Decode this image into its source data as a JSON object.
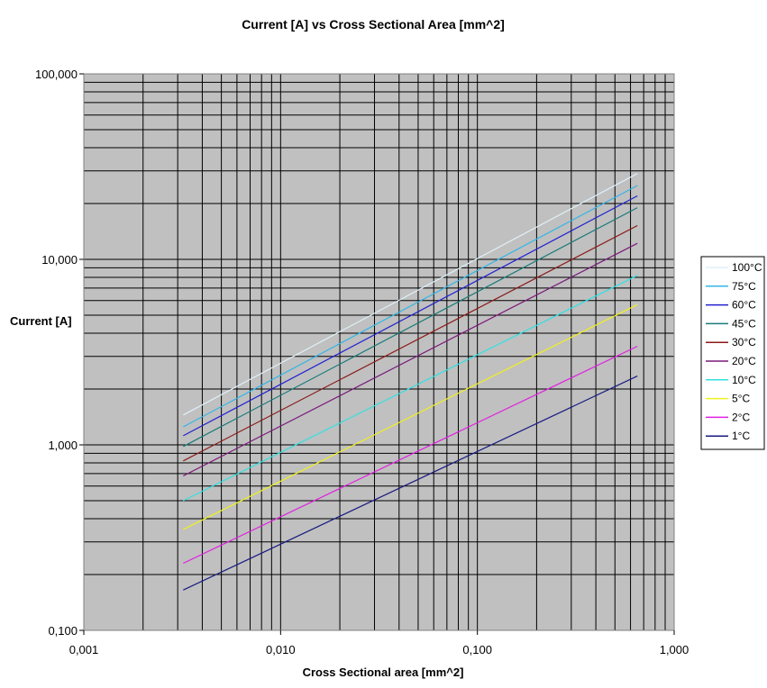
{
  "chart_data": {
    "type": "line",
    "title": "Current [A] vs Cross Sectional  Area [mm^2]",
    "xlabel": "Cross Sectional area [mm^2]",
    "ylabel": "Current [A]",
    "x_scale": "log",
    "y_scale": "log",
    "xlim": [
      0.001,
      1
    ],
    "ylim": [
      0.1,
      100
    ],
    "x_ticks": [
      0.001,
      0.01,
      0.1,
      1
    ],
    "x_tick_labels": [
      "0,001",
      "0,010",
      "0,100",
      "1,000"
    ],
    "y_ticks": [
      0.1,
      1,
      10,
      100
    ],
    "y_tick_labels": [
      "0,100",
      "1,000",
      "10,000",
      "100,000"
    ],
    "grid": true,
    "plot_background": "#c0c0c0",
    "legend_position": "right",
    "series": [
      {
        "name": "100°C",
        "color": "#e0f0f8",
        "x": [
          0.0032,
          0.65
        ],
        "y": [
          1.45,
          29
        ]
      },
      {
        "name": "75°C",
        "color": "#33b5e5",
        "x": [
          0.0032,
          0.65
        ],
        "y": [
          1.25,
          25
        ]
      },
      {
        "name": "60°C",
        "color": "#2020d0",
        "x": [
          0.0032,
          0.65
        ],
        "y": [
          1.12,
          22
        ]
      },
      {
        "name": "45°C",
        "color": "#1a7a7a",
        "x": [
          0.0032,
          0.65
        ],
        "y": [
          0.98,
          19
        ]
      },
      {
        "name": "30°C",
        "color": "#8b1a1a",
        "x": [
          0.0032,
          0.65
        ],
        "y": [
          0.82,
          15.2
        ]
      },
      {
        "name": "20°C",
        "color": "#7a1a7a",
        "x": [
          0.0032,
          0.65
        ],
        "y": [
          0.68,
          12.2
        ]
      },
      {
        "name": "10°C",
        "color": "#33e0e0",
        "x": [
          0.0032,
          0.65
        ],
        "y": [
          0.5,
          8.2
        ]
      },
      {
        "name": "5°C",
        "color": "#f0f020",
        "x": [
          0.0032,
          0.65
        ],
        "y": [
          0.35,
          5.7
        ]
      },
      {
        "name": "2°C",
        "color": "#e020e0",
        "x": [
          0.0032,
          0.65
        ],
        "y": [
          0.23,
          3.4
        ]
      },
      {
        "name": "1°C",
        "color": "#1a1a80",
        "x": [
          0.0032,
          0.65
        ],
        "y": [
          0.165,
          2.35
        ]
      }
    ]
  }
}
